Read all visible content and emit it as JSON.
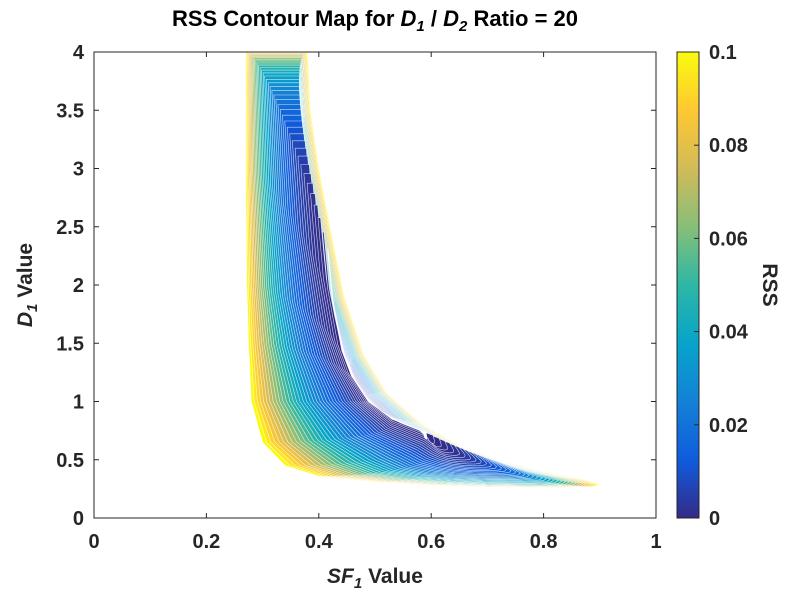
{
  "chart_data": {
    "type": "contour",
    "title": {
      "prefix": "RSS Contour Map for ",
      "var1": "D",
      "sub1": "1",
      "sep": " / ",
      "var2": "D",
      "sub2": "2",
      "suffix": " Ratio = 20"
    },
    "xlabel": {
      "var": "SF",
      "sub": "1",
      "rest": " Value"
    },
    "ylabel": {
      "var": "D",
      "sub": "1",
      "rest": "  Value"
    },
    "xlim": [
      0,
      1
    ],
    "ylim": [
      0,
      4
    ],
    "xticks": [
      0,
      0.2,
      0.4,
      0.6,
      0.8,
      1
    ],
    "xtick_labels": [
      "0",
      "0.2",
      "0.4",
      "0.6",
      "0.8",
      "1"
    ],
    "yticks": [
      0,
      0.5,
      1,
      1.5,
      2,
      2.5,
      3,
      3.5,
      4
    ],
    "ytick_labels": [
      "0",
      "0.5",
      "1",
      "1.5",
      "2",
      "2.5",
      "3",
      "3.5",
      "4"
    ],
    "colorbar": {
      "label": "RSS",
      "range": [
        0,
        0.1
      ],
      "ticks": [
        0,
        0.02,
        0.04,
        0.06,
        0.08,
        0.1
      ],
      "tick_labels": [
        "0",
        "0.02",
        "0.04",
        "0.06",
        "0.08",
        "0.1"
      ],
      "colormap": "parula",
      "colors": [
        "#352a87",
        "#0f5cdd",
        "#1481d6",
        "#06a4ca",
        "#2eb7a4",
        "#87bf77",
        "#d1bb59",
        "#fec832",
        "#f9fb0e"
      ]
    },
    "minimum": {
      "x": 0.49,
      "y": 1.0,
      "rss": 0.0
    },
    "contour_levels": 40,
    "boundary_rss": 0.1,
    "band_shape": {
      "outer_boundary": [
        [
          0.27,
          4.0
        ],
        [
          0.27,
          3.0
        ],
        [
          0.272,
          2.0
        ],
        [
          0.275,
          1.5
        ],
        [
          0.28,
          1.0
        ],
        [
          0.3,
          0.65
        ],
        [
          0.34,
          0.45
        ],
        [
          0.4,
          0.36
        ],
        [
          0.5,
          0.31
        ],
        [
          0.6,
          0.28
        ],
        [
          0.7,
          0.265
        ],
        [
          0.78,
          0.26
        ],
        [
          0.84,
          0.26
        ],
        [
          0.89,
          0.27
        ],
        [
          0.9,
          0.29
        ],
        [
          0.87,
          0.33
        ],
        [
          0.8,
          0.4
        ],
        [
          0.72,
          0.5
        ],
        [
          0.65,
          0.62
        ],
        [
          0.58,
          0.82
        ],
        [
          0.52,
          1.08
        ],
        [
          0.48,
          1.4
        ],
        [
          0.445,
          1.9
        ],
        [
          0.42,
          2.5
        ],
        [
          0.4,
          3.0
        ],
        [
          0.385,
          3.5
        ],
        [
          0.38,
          4.0
        ]
      ],
      "valley": [
        [
          0.32,
          4.0
        ],
        [
          0.33,
          3.5
        ],
        [
          0.34,
          3.0
        ],
        [
          0.36,
          2.5
        ],
        [
          0.38,
          2.0
        ],
        [
          0.42,
          1.5
        ],
        [
          0.49,
          1.0
        ],
        [
          0.55,
          0.75
        ],
        [
          0.63,
          0.55
        ],
        [
          0.72,
          0.42
        ]
      ]
    },
    "grid": false,
    "legend": "none"
  }
}
